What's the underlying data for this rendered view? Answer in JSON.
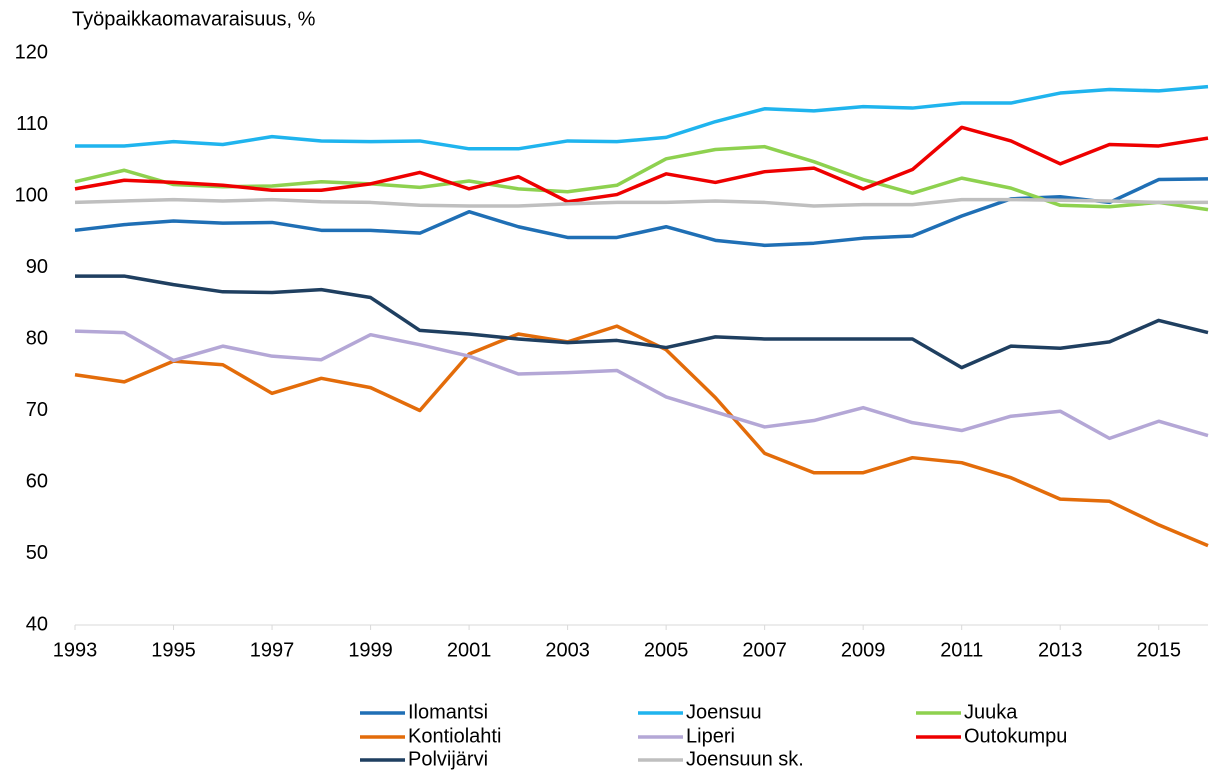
{
  "chart_data": {
    "type": "line",
    "ylabel": "Työpaikkaomavaraisuus, %",
    "x": [
      1993,
      1994,
      1995,
      1996,
      1997,
      1998,
      1999,
      2000,
      2001,
      2002,
      2003,
      2004,
      2005,
      2006,
      2007,
      2008,
      2009,
      2010,
      2011,
      2012,
      2013,
      2014,
      2015,
      2016
    ],
    "xlim": [
      1993,
      2016
    ],
    "xticks": [
      1993,
      1995,
      1997,
      1999,
      2001,
      2003,
      2005,
      2007,
      2009,
      2011,
      2013,
      2015
    ],
    "ylim": [
      40,
      120
    ],
    "yticks": [
      40,
      50,
      60,
      70,
      80,
      90,
      100,
      110,
      120
    ],
    "grid": false,
    "legend": "bottom",
    "series": [
      {
        "name": "Ilomantsi",
        "color": "#1f6fb5",
        "values": [
          95.2,
          96,
          96.5,
          96.2,
          96.3,
          95.2,
          95.2,
          94.8,
          97.8,
          95.7,
          94.2,
          94.2,
          95.7,
          93.8,
          93.1,
          93.4,
          94.1,
          94.4,
          97.2,
          99.6,
          99.9,
          99.1,
          102.3,
          102.4
        ]
      },
      {
        "name": "Joensuu",
        "color": "#1fb4ee",
        "values": [
          107,
          107,
          107.6,
          107.2,
          108.3,
          107.7,
          107.6,
          107.7,
          106.6,
          106.6,
          107.7,
          107.6,
          108.2,
          110.4,
          112.2,
          111.9,
          112.5,
          112.3,
          113,
          113,
          114.4,
          114.9,
          114.7,
          115.3
        ]
      },
      {
        "name": "Juuka",
        "color": "#8ed14f",
        "values": [
          102,
          103.6,
          101.6,
          101.3,
          101.4,
          102,
          101.7,
          101.2,
          102.1,
          101,
          100.6,
          101.5,
          105.2,
          106.5,
          106.9,
          104.8,
          102.3,
          100.4,
          102.5,
          101.1,
          98.7,
          98.5,
          99.1,
          98.1
        ]
      },
      {
        "name": "Kontiolahti",
        "color": "#e36c0a",
        "values": [
          75,
          74,
          76.9,
          76.4,
          72.4,
          74.5,
          73.2,
          70,
          77.9,
          80.7,
          79.6,
          81.8,
          78.5,
          71.8,
          64,
          61.3,
          61.3,
          63.4,
          62.7,
          60.6,
          57.6,
          57.3,
          54,
          51.1
        ]
      },
      {
        "name": "Liperi",
        "color": "#b4a7d6",
        "values": [
          81.1,
          80.9,
          77,
          79,
          77.6,
          77.1,
          80.6,
          79.2,
          77.6,
          75.1,
          75.3,
          75.6,
          71.9,
          69.8,
          67.7,
          68.6,
          70.4,
          68.3,
          67.2,
          69.2,
          69.9,
          66.1,
          68.5,
          66.5
        ]
      },
      {
        "name": "Outokumpu",
        "color": "#ee0000",
        "values": [
          101,
          102.2,
          101.9,
          101.5,
          100.8,
          100.8,
          101.7,
          103.3,
          101,
          102.7,
          99.2,
          100.2,
          103.1,
          101.9,
          103.4,
          103.9,
          101,
          103.7,
          109.6,
          107.7,
          104.5,
          107.2,
          107,
          108.1
        ]
      },
      {
        "name": "Polvijärvi",
        "color": "#1f3f60",
        "values": [
          88.8,
          88.8,
          87.6,
          86.6,
          86.5,
          86.9,
          85.8,
          81.2,
          80.7,
          80,
          79.5,
          79.8,
          78.8,
          80.3,
          80,
          80,
          80,
          80,
          76,
          79,
          78.7,
          79.6,
          82.6,
          80.9
        ]
      },
      {
        "name": "Joensuun sk.",
        "color": "#bfbfbf",
        "values": [
          99.1,
          99.3,
          99.5,
          99.3,
          99.5,
          99.2,
          99.1,
          98.7,
          98.6,
          98.6,
          98.9,
          99.1,
          99.1,
          99.3,
          99.1,
          98.6,
          98.8,
          98.8,
          99.5,
          99.5,
          99.4,
          99.3,
          99.1,
          99.1
        ]
      }
    ]
  }
}
